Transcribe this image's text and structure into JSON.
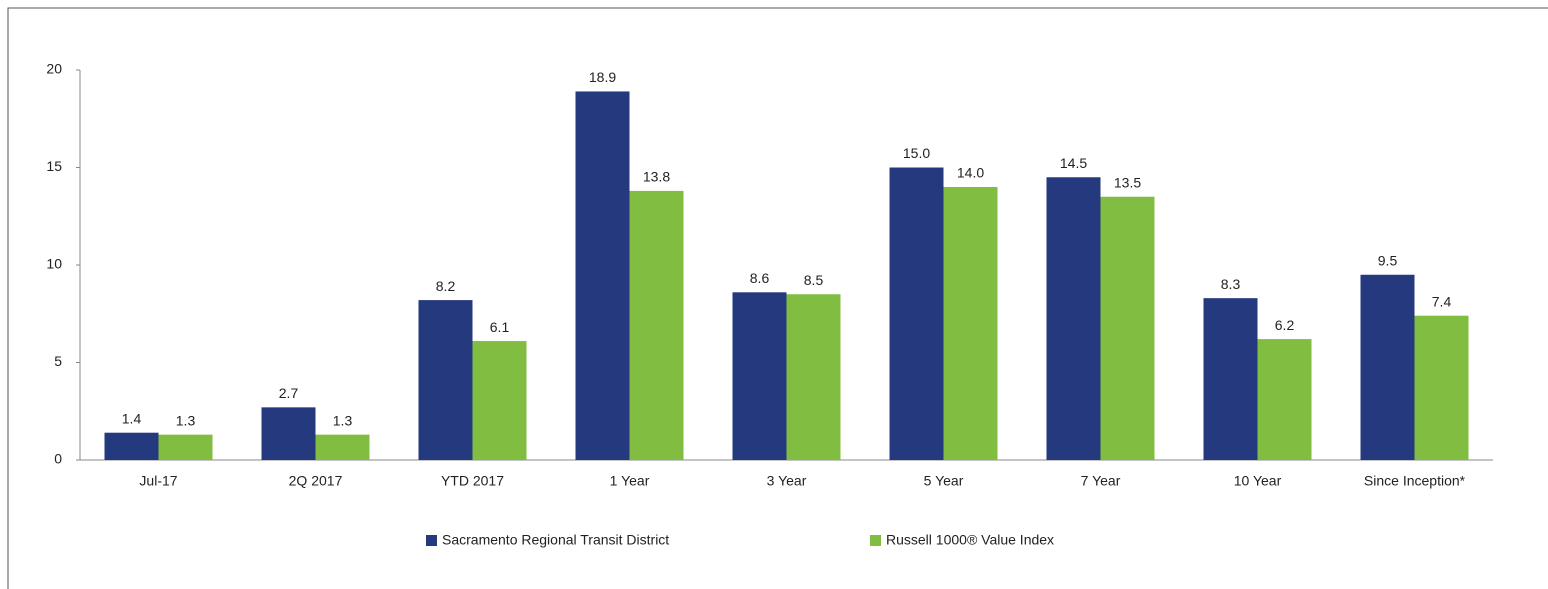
{
  "chart_data": {
    "type": "bar",
    "categories": [
      "Jul-17",
      "2Q 2017",
      "YTD 2017",
      "1 Year",
      "3 Year",
      "5 Year",
      "7 Year",
      "10 Year",
      "Since Inception*"
    ],
    "series": [
      {
        "name": "Sacramento Regional Transit District",
        "color": "#253a7e",
        "values": [
          1.4,
          2.7,
          8.2,
          18.9,
          8.6,
          15.0,
          14.5,
          8.3,
          9.5
        ],
        "value_labels": [
          "1.4",
          "2.7",
          "8.2",
          "18.9",
          "8.6",
          "15.0",
          "14.5",
          "8.3",
          "9.5"
        ]
      },
      {
        "name": "Russell 1000® Value Index",
        "color": "#80bd41",
        "values": [
          1.3,
          1.3,
          6.1,
          13.8,
          8.5,
          14.0,
          13.5,
          6.2,
          7.4
        ],
        "value_labels": [
          "1.3",
          "1.3",
          "6.1",
          "13.8",
          "8.5",
          "14.0",
          "13.5",
          "6.2",
          "7.4"
        ]
      }
    ],
    "ylim": [
      0,
      20
    ],
    "yticks": [
      0,
      5,
      10,
      15,
      20
    ],
    "grid": false,
    "legend": "bottom"
  }
}
